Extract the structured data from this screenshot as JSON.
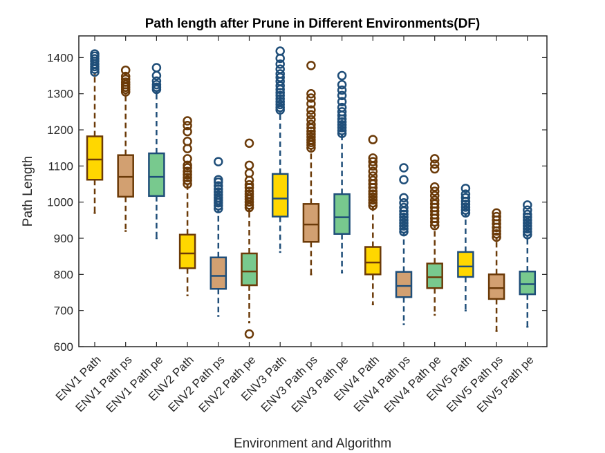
{
  "chart_data": {
    "type": "box",
    "title": "Path length after Prune in Different Environments(DF)",
    "xlabel": "Environment and Algorithm",
    "ylabel": "Path Length",
    "ylim": [
      600,
      1460
    ],
    "yticks": [
      600,
      700,
      800,
      900,
      1000,
      1100,
      1200,
      1300,
      1400
    ],
    "categories": [
      "ENV1 Path",
      "ENV1 Path ps",
      "ENV1 Path pe",
      "ENV2 Path",
      "ENV2 Path ps",
      "ENV2 Path pe",
      "ENV3 Path",
      "ENV3 Path ps",
      "ENV3 Path pe",
      "ENV4 Path",
      "ENV4 Path ps",
      "ENV4 Path pe",
      "ENV5 Path",
      "ENV5 Path ps",
      "ENV5 Path pe"
    ],
    "grid": false,
    "colors": {
      "yellow_fill": "#FFD700",
      "yellow_edge": "#6B3A08",
      "tan_fill": "#D2A071",
      "tan_edge": "#6B3A08",
      "green_fill": "#78C98E",
      "green_edge": "#1F4E79",
      "outlier_brown": "#6B3A08",
      "outlier_blue": "#1F4E79"
    },
    "boxes": [
      {
        "category": "ENV1 Path",
        "whisker_low": 970,
        "q1": 1062,
        "median": 1118,
        "q3": 1182,
        "whisker_high": 1355,
        "fill": "#FFD700",
        "edge": "#6B3A08",
        "outlier_color": "#1F4E79",
        "outliers": [
          1360,
          1368,
          1375,
          1382,
          1390,
          1397,
          1404,
          1410
        ]
      },
      {
        "category": "ENV1 Path ps",
        "whisker_low": 920,
        "q1": 1015,
        "median": 1070,
        "q3": 1130,
        "whisker_high": 1300,
        "fill": "#D2A071",
        "edge": "#6B3A08",
        "outlier_color": "#6B3A08",
        "outliers": [
          1305,
          1312,
          1318,
          1325,
          1332,
          1340,
          1348,
          1365
        ]
      },
      {
        "category": "ENV1 Path pe",
        "whisker_low": 900,
        "q1": 1017,
        "median": 1070,
        "q3": 1135,
        "whisker_high": 1305,
        "fill": "#78C98E",
        "edge": "#1F4E79",
        "outlier_color": "#1F4E79",
        "outliers": [
          1312,
          1318,
          1325,
          1335,
          1350,
          1372
        ]
      },
      {
        "category": "ENV2 Path",
        "whisker_low": 742,
        "q1": 817,
        "median": 858,
        "q3": 910,
        "whisker_high": 1045,
        "fill": "#FFD700",
        "edge": "#6B3A08",
        "outlier_color": "#6B3A08",
        "outliers": [
          1050,
          1060,
          1068,
          1076,
          1085,
          1095,
          1102,
          1120,
          1148,
          1168,
          1195,
          1212,
          1225
        ]
      },
      {
        "category": "ENV2 Path ps",
        "whisker_low": 685,
        "q1": 760,
        "median": 796,
        "q3": 847,
        "whisker_high": 975,
        "fill": "#D2A071",
        "edge": "#1F4E79",
        "outlier_color": "#1F4E79",
        "outliers": [
          982,
          990,
          998,
          1005,
          1012,
          1020,
          1028,
          1036,
          1045,
          1055,
          1062,
          1112
        ]
      },
      {
        "category": "ENV2 Path pe",
        "whisker_low": 667,
        "q1": 770,
        "median": 808,
        "q3": 858,
        "whisker_high": 978,
        "fill": "#78C98E",
        "edge": "#6B3A08",
        "outlier_color": "#6B3A08",
        "outliers": [
          635,
          985,
          992,
          1000,
          1008,
          1015,
          1022,
          1030,
          1040,
          1048,
          1060,
          1080,
          1102,
          1163
        ]
      },
      {
        "category": "ENV3 Path",
        "whisker_low": 862,
        "q1": 960,
        "median": 1010,
        "q3": 1078,
        "whisker_high": 1250,
        "fill": "#FFD700",
        "edge": "#1F4E79",
        "outlier_color": "#1F4E79",
        "outliers": [
          1255,
          1262,
          1270,
          1278,
          1286,
          1295,
          1303,
          1312,
          1322,
          1334,
          1345,
          1355,
          1368,
          1382,
          1398,
          1418
        ]
      },
      {
        "category": "ENV3 Path ps",
        "whisker_low": 800,
        "q1": 890,
        "median": 938,
        "q3": 995,
        "whisker_high": 1145,
        "fill": "#D2A071",
        "edge": "#6B3A08",
        "outlier_color": "#6B3A08",
        "outliers": [
          1150,
          1158,
          1165,
          1172,
          1180,
          1188,
          1196,
          1205,
          1215,
          1228,
          1242,
          1255,
          1272,
          1288,
          1300,
          1378
        ]
      },
      {
        "category": "ENV3 Path pe",
        "whisker_low": 805,
        "q1": 912,
        "median": 958,
        "q3": 1022,
        "whisker_high": 1185,
        "fill": "#78C98E",
        "edge": "#1F4E79",
        "outlier_color": "#1F4E79",
        "outliers": [
          1190,
          1198,
          1206,
          1214,
          1222,
          1230,
          1240,
          1250,
          1262,
          1278,
          1295,
          1310,
          1325,
          1350
        ]
      },
      {
        "category": "ENV4 Path",
        "whisker_low": 717,
        "q1": 800,
        "median": 833,
        "q3": 876,
        "whisker_high": 985,
        "fill": "#FFD700",
        "edge": "#6B3A08",
        "outlier_color": "#6B3A08",
        "outliers": [
          990,
          998,
          1006,
          1014,
          1022,
          1030,
          1040,
          1050,
          1060,
          1072,
          1085,
          1100,
          1112,
          1122,
          1173
        ]
      },
      {
        "category": "ENV4 Path ps",
        "whisker_low": 662,
        "q1": 737,
        "median": 768,
        "q3": 807,
        "whisker_high": 912,
        "fill": "#D2A071",
        "edge": "#1F4E79",
        "outlier_color": "#1F4E79",
        "outliers": [
          918,
          926,
          934,
          942,
          950,
          958,
          966,
          975,
          985,
          998,
          1012,
          1062,
          1095
        ]
      },
      {
        "category": "ENV4 Path pe",
        "whisker_low": 688,
        "q1": 762,
        "median": 792,
        "q3": 830,
        "whisker_high": 930,
        "fill": "#78C98E",
        "edge": "#6B3A08",
        "outlier_color": "#6B3A08",
        "outliers": [
          935,
          945,
          955,
          965,
          975,
          985,
          995,
          1005,
          1018,
          1030,
          1042,
          1092,
          1105,
          1120
        ]
      },
      {
        "category": "ENV5 Path",
        "whisker_low": 700,
        "q1": 793,
        "median": 822,
        "q3": 862,
        "whisker_high": 965,
        "fill": "#FFD700",
        "edge": "#1F4E79",
        "outlier_color": "#1F4E79",
        "outliers": [
          970,
          978,
          986,
          994,
          1002,
          1012,
          1022,
          1038
        ]
      },
      {
        "category": "ENV5 Path ps",
        "whisker_low": 643,
        "q1": 732,
        "median": 762,
        "q3": 800,
        "whisker_high": 898,
        "fill": "#D2A071",
        "edge": "#6B3A08",
        "outlier_color": "#6B3A08",
        "outliers": [
          903,
          912,
          920,
          930,
          940,
          950,
          960,
          970
        ]
      },
      {
        "category": "ENV5 Path pe",
        "whisker_low": 655,
        "q1": 745,
        "median": 773,
        "q3": 808,
        "whisker_high": 905,
        "fill": "#78C98E",
        "edge": "#1F4E79",
        "outlier_color": "#1F4E79",
        "outliers": [
          910,
          918,
          926,
          934,
          942,
          950,
          958,
          966,
          978,
          992
        ]
      }
    ]
  }
}
